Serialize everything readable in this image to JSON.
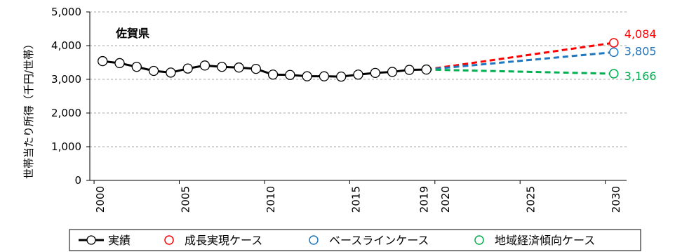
{
  "chart_data": {
    "type": "line",
    "title": "佐賀県",
    "xlabel": "",
    "ylabel": "世帯当たり所得（千円/世帯）",
    "ylim": [
      0,
      5000
    ],
    "yticks": [
      "0",
      "1,000",
      "2,000",
      "3,000",
      "4,000",
      "5,000"
    ],
    "xlim": [
      2000,
      2030
    ],
    "xticks_left": [
      "2000",
      "2005",
      "2010",
      "2015",
      "2019"
    ],
    "xticks_right": [
      "2020",
      "2025",
      "2030"
    ],
    "grid": "horizontal-dashed",
    "legend_position": "bottom",
    "actual": {
      "name": "実績",
      "color": "#000000",
      "x": [
        2000,
        2001,
        2002,
        2003,
        2004,
        2005,
        2006,
        2007,
        2008,
        2009,
        2010,
        2011,
        2012,
        2013,
        2014,
        2015,
        2016,
        2017,
        2018,
        2019
      ],
      "y": [
        3540,
        3480,
        3370,
        3250,
        3200,
        3320,
        3410,
        3370,
        3350,
        3310,
        3140,
        3130,
        3090,
        3090,
        3080,
        3140,
        3190,
        3220,
        3280,
        3290
      ]
    },
    "scenarios": [
      {
        "name": "成長実現ケース",
        "color": "#ff0000",
        "x": [
          2020,
          2030
        ],
        "y": [
          3290,
          4084
        ],
        "end_label": "4,084"
      },
      {
        "name": "ベースラインケース",
        "color": "#1f77c0",
        "x": [
          2020,
          2030
        ],
        "y": [
          3290,
          3805
        ],
        "end_label": "3,805"
      },
      {
        "name": "地域経済傾向ケース",
        "color": "#00b050",
        "x": [
          2020,
          2030
        ],
        "y": [
          3290,
          3166
        ],
        "end_label": "3,166"
      }
    ]
  }
}
